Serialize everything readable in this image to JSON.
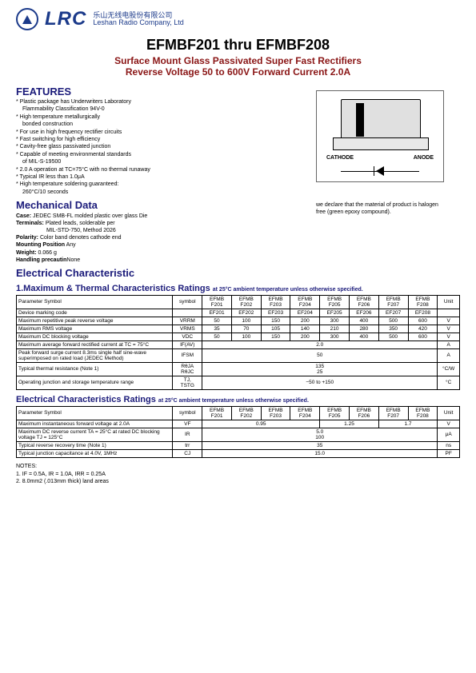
{
  "header": {
    "logo_text": "LRC",
    "company_cn": "乐山无线电股份有限公司",
    "company_en": "Leshan Radio Company, Ltd"
  },
  "title": "EFMBF201 thru EFMBF208",
  "subtitle1": "Surface Mount Glass Passivated Super Fast  Rectifiers",
  "subtitle2": "Reverse Voltage 50 to 600V Forward Current 2.0A",
  "features_head": "FEATURES",
  "features": [
    "Plastic package has Underwriters Laboratory",
    "Flammability Classification 94V-0",
    "High temperature metallurgically",
    "bonded construction",
    "For use in high frequency rectifier circuits",
    "Fast switching for high efficiency",
    "Cavity-free glass passivated junction",
    "Capable of meeting environmental standards",
    "of MIL-S-19500",
    "2.0 A operation at TC=75°C with no thermal runaway",
    "Typical IR less than 1.0μA",
    "High temperature soldering guaranteed:",
    "260°C/10 seconds"
  ],
  "feature_indents": [
    1,
    3,
    8,
    12
  ],
  "mech_head": "Mechanical Data",
  "mech": {
    "case_label": "Case:",
    "case": "JEDEC  SMB-FL molded plastic over glass Die",
    "terminals_label": "Terminals:",
    "terminals": "Plated  leads, solderable per",
    "terminals2": "MIL-STD-750, Method 2026",
    "polarity_label": "Polarity:",
    "polarity": "Color band denotes cathode end",
    "mounting_label": "Mounting Position",
    "mounting": "Any",
    "weight_label": "Weight:",
    "weight": "0.066 g",
    "handling_label": "Handling precautin",
    "handling": "None"
  },
  "halogen_note1": "we declare that the material of product is halogen",
  "halogen_note2": "free (green epoxy compound).",
  "package": {
    "cathode": "CATHODE",
    "anode": "ANODE"
  },
  "elec_head": "Electrical Characteristic",
  "table1_title": "1.Maximum  & Thermal Characteristics Ratings",
  "table1_note": "at 25°C ambient temperature unless otherwise specified.",
  "table1": {
    "headers": [
      "Parameter Symbol",
      "symbol",
      "EFMB F201",
      "EFMB F202",
      "EFMB F203",
      "EFMB F204",
      "EFMB F205",
      "EFMB F206",
      "EFMB F207",
      "EFMB F208",
      "Unit"
    ],
    "rows": [
      {
        "param": "Device marking code",
        "sym": "",
        "vals": [
          "EF201",
          "EF202",
          "EF203",
          "EF204",
          "EF205",
          "EF206",
          "EF207",
          "EF208"
        ],
        "unit": ""
      },
      {
        "param": "Maximum repetitive peak reverse voltage",
        "sym": "VRRM",
        "vals": [
          "50",
          "100",
          "150",
          "200",
          "300",
          "400",
          "500",
          "600"
        ],
        "unit": "V"
      },
      {
        "param": "Maximum RMS voltage",
        "sym": "VRMS",
        "vals": [
          "35",
          "70",
          "105",
          "140",
          "210",
          "280",
          "350",
          "420"
        ],
        "unit": "V"
      },
      {
        "param": "Maximum DC blocking voltage",
        "sym": "VDC",
        "vals": [
          "50",
          "100",
          "150",
          "200",
          "300",
          "400",
          "500",
          "600"
        ],
        "unit": "V"
      },
      {
        "param": "Maximum average forward rectified current  at TC = 75°C",
        "sym": "IF(AV)",
        "span": "2.0",
        "unit": "A"
      },
      {
        "param": "Peak forward surge current 8.3ms single half sine-wave superimposed on rated load (JEDEC Method)",
        "sym": "IFSM",
        "span": "50",
        "unit": "A"
      },
      {
        "param": "Typical thermal resistance (Note 1)",
        "sym": "RθJA RθJC",
        "span": "135 25",
        "unit": "°C/W"
      },
      {
        "param": "Operating junction and storage temperature range",
        "sym": "TJ, TSTG",
        "span": "−50 to +150",
        "unit": "°C"
      }
    ]
  },
  "table2_title": "Electrical Characteristics Ratings",
  "table2_note": "at 25°C ambient temperature unless otherwise specified.",
  "table2": {
    "headers": [
      "Parameter Symbol",
      "symbol",
      "EFMB F201",
      "EFMB F202",
      "EFMB F203",
      "EFMB F204",
      "EFMB F205",
      "EFMB F206",
      "EFMB F207",
      "EFMB F208",
      "Unit"
    ],
    "rows": [
      {
        "param": "Maximum instantaneous forward voltage at 2.0A",
        "sym": "VF",
        "groups": [
          [
            "0.95",
            4
          ],
          [
            "1.25",
            2
          ],
          [
            "1.7",
            2
          ]
        ],
        "unit": "V"
      },
      {
        "param": "Maximum DC reverse current TA = 25°C at rated DC blocking voltage TJ = 125°C",
        "sym": "IR",
        "span": "5.0 100",
        "unit": "μA"
      },
      {
        "param": "Typical reverse recovery time (Note 1)",
        "sym": "trr",
        "span": "35",
        "unit": "ns"
      },
      {
        "param": "Typical junction capacitance at 4.0V, 1MHz",
        "sym": "CJ",
        "span": "15.0",
        "unit": "PF"
      }
    ]
  },
  "notes_head": "NOTES:",
  "notes": [
    "1.  IF = 0.5A, IR = 1.0A, IRR = 0.25A",
    "2. 8.0mm2 (.013mm thick) land areas"
  ]
}
